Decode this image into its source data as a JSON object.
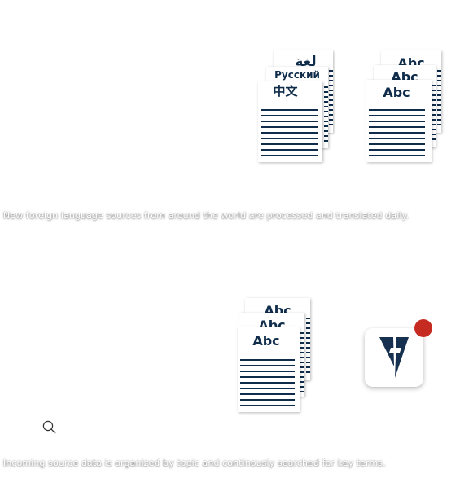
{
  "captions": {
    "top": "New foreign language sources from around the world are processed and translated daily.",
    "bottom": "Incoming source data is organized by topic and continously searched for key terms."
  },
  "foreign_docs": {
    "arabic": "لغة",
    "russian": "Русский",
    "chinese": "中文"
  },
  "translated_docs": {
    "back": "Abc",
    "middle": "Abc",
    "front": "Abc"
  },
  "organized_docs": {
    "back": "Abc",
    "middle": "Abc",
    "front": "Abc"
  },
  "icons": {
    "app": "v-logo-icon",
    "notification": "notification-badge-icon",
    "search": "search-icon"
  },
  "colors": {
    "ink": "#0f2c4a",
    "badge": "#c62b22",
    "logo": "#16304f"
  }
}
